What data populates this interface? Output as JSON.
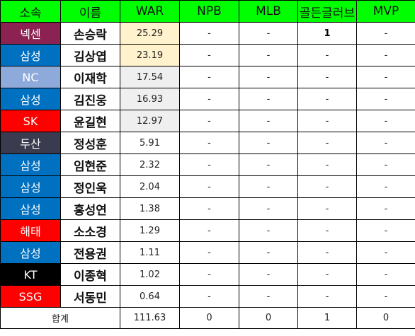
{
  "colors": {
    "header_bg": "#00ff00",
    "war_highlight_yellow": "#fff2cc",
    "war_highlight_gray": "#efefef",
    "total_war_color": "#ff0000"
  },
  "table": {
    "headers": [
      "소속",
      "이름",
      "WAR",
      "NPB",
      "MLB",
      "골든글러브",
      "MVP"
    ],
    "rows": [
      {
        "team": "넥센",
        "team_color": "#8b2252",
        "name": "손승락",
        "war": "25.29",
        "war_bg": "#fff2cc",
        "npb": "-",
        "mlb": "-",
        "gg": "1",
        "mvp": "-"
      },
      {
        "team": "삼성",
        "team_color": "#0070c0",
        "name": "김상엽",
        "war": "23.19",
        "war_bg": "#fff2cc",
        "npb": "-",
        "mlb": "-",
        "gg": "-",
        "mvp": "-"
      },
      {
        "team": "NC",
        "team_color": "#8eaadb",
        "name": "이재학",
        "war": "17.54",
        "war_bg": "#efefef",
        "npb": "-",
        "mlb": "-",
        "gg": "-",
        "mvp": "-"
      },
      {
        "team": "삼성",
        "team_color": "#0070c0",
        "name": "김진웅",
        "war": "16.93",
        "war_bg": "#efefef",
        "npb": "-",
        "mlb": "-",
        "gg": "-",
        "mvp": "-"
      },
      {
        "team": "SK",
        "team_color": "#ff0000",
        "name": "윤길현",
        "war": "12.97",
        "war_bg": "#efefef",
        "npb": "-",
        "mlb": "-",
        "gg": "-",
        "mvp": "-"
      },
      {
        "team": "두산",
        "team_color": "#3b3b4f",
        "name": "정성훈",
        "war": "5.91",
        "war_bg": "#ffffff",
        "npb": "-",
        "mlb": "-",
        "gg": "-",
        "mvp": "-"
      },
      {
        "team": "삼성",
        "team_color": "#0070c0",
        "name": "임현준",
        "war": "2.32",
        "war_bg": "#ffffff",
        "npb": "-",
        "mlb": "-",
        "gg": "-",
        "mvp": "-"
      },
      {
        "team": "삼성",
        "team_color": "#0070c0",
        "name": "정인욱",
        "war": "2.04",
        "war_bg": "#ffffff",
        "npb": "-",
        "mlb": "-",
        "gg": "-",
        "mvp": "-"
      },
      {
        "team": "삼성",
        "team_color": "#0070c0",
        "name": "홍성연",
        "war": "1.38",
        "war_bg": "#ffffff",
        "npb": "-",
        "mlb": "-",
        "gg": "-",
        "mvp": "-"
      },
      {
        "team": "해태",
        "team_color": "#ff0000",
        "name": "소소경",
        "war": "1.29",
        "war_bg": "#ffffff",
        "npb": "-",
        "mlb": "-",
        "gg": "-",
        "mvp": "-"
      },
      {
        "team": "삼성",
        "team_color": "#0070c0",
        "name": "전용권",
        "war": "1.11",
        "war_bg": "#ffffff",
        "npb": "-",
        "mlb": "-",
        "gg": "-",
        "mvp": "-"
      },
      {
        "team": "KT",
        "team_color": "#000000",
        "name": "이종혁",
        "war": "1.02",
        "war_bg": "#ffffff",
        "npb": "-",
        "mlb": "-",
        "gg": "-",
        "mvp": "-"
      },
      {
        "team": "SSG",
        "team_color": "#ff0000",
        "name": "서동민",
        "war": "0.64",
        "war_bg": "#ffffff",
        "npb": "-",
        "mlb": "-",
        "gg": "-",
        "mvp": "-"
      }
    ],
    "total": {
      "label": "합계",
      "war": "111.63",
      "npb": "0",
      "mlb": "0",
      "gg": "1",
      "mvp": "0"
    }
  }
}
